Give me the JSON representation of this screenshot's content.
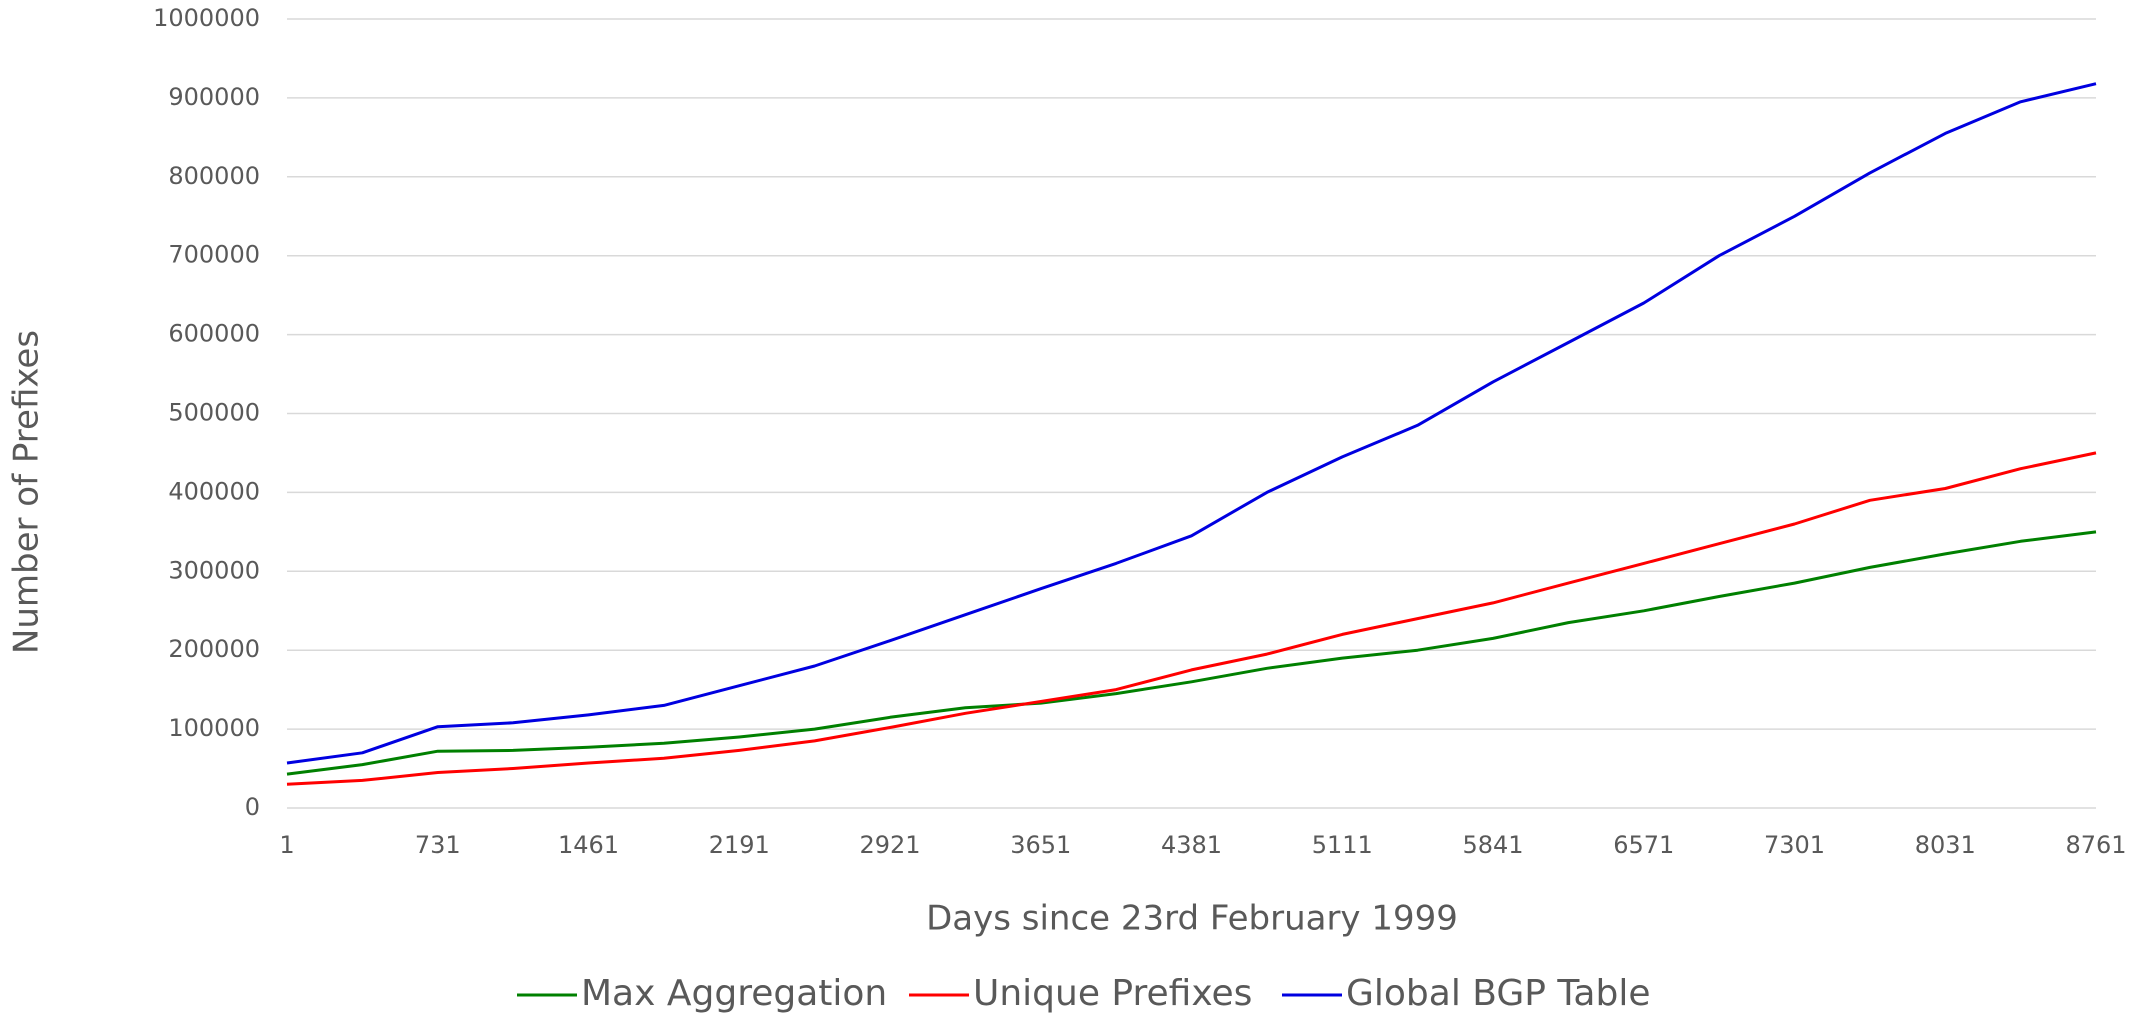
{
  "chart_data": {
    "type": "line",
    "x_label": "Days since 23rd February 1999",
    "y_label": "Number of Prefixes",
    "x": [
      1,
      366,
      731,
      1096,
      1461,
      1826,
      2191,
      2556,
      2921,
      3286,
      3651,
      4016,
      4381,
      4746,
      5111,
      5476,
      5841,
      6206,
      6571,
      6936,
      7301,
      7666,
      8031,
      8396,
      8761
    ],
    "series": [
      {
        "name": "Max Aggregation",
        "color": "#008000",
        "values": [
          43000,
          55000,
          72000,
          73000,
          77000,
          82000,
          90000,
          100000,
          115000,
          127000,
          133000,
          145000,
          160000,
          177000,
          190000,
          200000,
          215000,
          235000,
          250000,
          268000,
          285000,
          305000,
          322000,
          338000,
          350000
        ]
      },
      {
        "name": "Unique Prefixes",
        "color": "#ff0000",
        "values": [
          30000,
          35000,
          45000,
          50000,
          57000,
          63000,
          73000,
          85000,
          102000,
          120000,
          135000,
          150000,
          175000,
          195000,
          220000,
          240000,
          260000,
          285000,
          310000,
          335000,
          360000,
          390000,
          405000,
          430000,
          450000
        ]
      },
      {
        "name": "Global BGP Table",
        "color": "#0000e0",
        "values": [
          57000,
          70000,
          103000,
          108000,
          118000,
          130000,
          155000,
          180000,
          212000,
          245000,
          278000,
          310000,
          345000,
          400000,
          445000,
          485000,
          540000,
          590000,
          640000,
          700000,
          750000,
          805000,
          855000,
          895000,
          918000
        ]
      }
    ],
    "xlim": [
      1,
      8761
    ],
    "xticks": [
      1,
      731,
      1461,
      2191,
      2921,
      3651,
      4381,
      5111,
      5841,
      6571,
      7301,
      8031,
      8761
    ],
    "ylim": [
      0,
      1000000
    ],
    "yticks": [
      0,
      100000,
      200000,
      300000,
      400000,
      500000,
      600000,
      700000,
      800000,
      900000,
      1000000
    ],
    "grid": true,
    "legend": "bottom"
  }
}
